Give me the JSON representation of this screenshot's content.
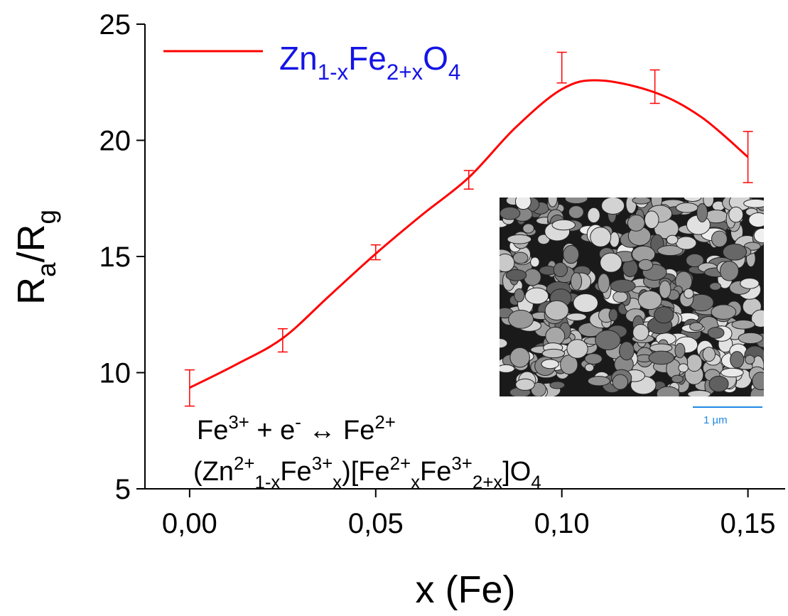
{
  "chart_data": {
    "type": "line",
    "x_label": "x (Fe)",
    "y_label": [
      {
        "t": "R"
      },
      {
        "t": "a",
        "sub": true
      },
      {
        "t": "/R"
      },
      {
        "t": "g",
        "sub": true
      }
    ],
    "xlim": [
      -0.012,
      0.16
    ],
    "ylim": [
      5,
      25
    ],
    "xticks": [
      {
        "value": 0,
        "label": "0,00"
      },
      {
        "value": 0.05,
        "label": "0,05"
      },
      {
        "value": 0.1,
        "label": "0,10"
      },
      {
        "value": 0.15,
        "label": "0,15"
      }
    ],
    "yticks": [
      5,
      10,
      15,
      20,
      25
    ],
    "series": [
      {
        "name": [
          {
            "t": "Zn"
          },
          {
            "t": "1-x",
            "sub": true
          },
          {
            "t": "Fe"
          },
          {
            "t": "2+x",
            "sub": true
          },
          {
            "t": "O"
          },
          {
            "t": "4",
            "sub": true
          }
        ],
        "color": "#ff0000",
        "x": [
          0,
          0.0125,
          0.025,
          0.0375,
          0.05,
          0.0625,
          0.075,
          0.0875,
          0.1,
          0.11,
          0.125,
          0.1375,
          0.15
        ],
        "values": [
          9.35,
          10.35,
          11.48,
          13.3,
          15.12,
          16.8,
          18.4,
          20.54,
          22.2,
          22.58,
          22.06,
          21.0,
          19.28
        ]
      }
    ],
    "measurements": {
      "color": "#ff0000",
      "x": [
        0,
        0.025,
        0.05,
        0.075,
        0.1,
        0.125,
        0.15
      ],
      "values": [
        9.34,
        11.39,
        15.18,
        18.3,
        23.13,
        22.31,
        19.28
      ],
      "errors": [
        0.78,
        0.5,
        0.32,
        0.4,
        0.66,
        0.72,
        1.1
      ]
    },
    "annotations": [
      [
        {
          "t": "Fe"
        },
        {
          "t": "3+",
          "sup": true
        },
        {
          "t": " + e"
        },
        {
          "t": "-",
          "sup": true
        },
        {
          "t": " ↔ Fe"
        },
        {
          "t": "2+",
          "sup": true
        }
      ],
      [
        {
          "t": "(Zn"
        },
        {
          "t": "2+",
          "sup": true
        },
        {
          "t": "1-x",
          "sub": true
        },
        {
          "t": "Fe"
        },
        {
          "t": "3+",
          "sup": true
        },
        {
          "t": "x",
          "sub": true
        },
        {
          "t": ")[Fe"
        },
        {
          "t": "2+",
          "sup": true
        },
        {
          "t": "x",
          "sub": true
        },
        {
          "t": "Fe"
        },
        {
          "t": "3+",
          "sup": true
        },
        {
          "t": "2+x",
          "sub": true
        },
        {
          "t": "]O"
        },
        {
          "t": "4",
          "sub": true
        }
      ]
    ],
    "inset": {
      "scale_label": "1 µm"
    }
  }
}
